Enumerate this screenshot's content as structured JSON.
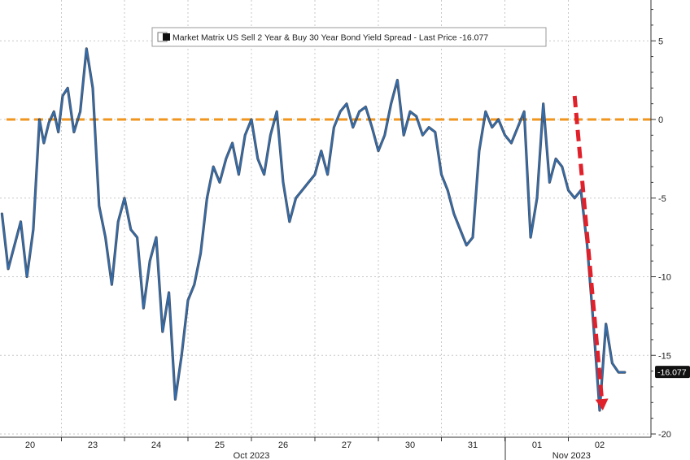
{
  "chart_data": {
    "type": "line",
    "title": "",
    "xlabel": "",
    "ylabel": "",
    "legend": {
      "text": "Market Matrix US Sell 2 Year & Buy 30 Year Bond Yield Spread - Last Price -16.077",
      "placement": "top-center"
    },
    "ylim": [
      -20,
      7
    ],
    "yticks": [
      5,
      0,
      -5,
      -10,
      -15,
      -20
    ],
    "ytick_labels": [
      "5",
      "0",
      "-5",
      "-10",
      "-15",
      "-20"
    ],
    "grid": true,
    "reference_line": {
      "y": 0,
      "color": "#f0961e",
      "style": "dashed"
    },
    "x_day_labels": [
      "20",
      "23",
      "24",
      "25",
      "26",
      "27",
      "30",
      "31",
      "01",
      "02"
    ],
    "x_month_labels": [
      {
        "label": "Oct 2023",
        "day_index": 3.5
      },
      {
        "label": "Nov 2023",
        "day_index": 8.55
      }
    ],
    "last_price": {
      "label": "-16.077",
      "value": -16.077,
      "color": "#111111"
    },
    "annotation": {
      "type": "arrow",
      "color": "#e0202a",
      "style": "dashed",
      "from": [
        8.6,
        1.5
      ],
      "to": [
        9.05,
        -18.5
      ]
    },
    "series": [
      {
        "color": "#2f6fb5",
        "x": [
          -0.45,
          -0.35,
          -0.25,
          -0.15,
          -0.05,
          0.05,
          0.15,
          0.22,
          0.3,
          0.38,
          0.45,
          0.52,
          0.6,
          0.7,
          0.8,
          0.9,
          1.0,
          1.1,
          1.2,
          1.3,
          1.4,
          1.5,
          1.6,
          1.7,
          1.8,
          1.9,
          2.0,
          2.1,
          2.2,
          2.3,
          2.4,
          2.5,
          2.6,
          2.7,
          2.8,
          2.9,
          3.0,
          3.1,
          3.2,
          3.3,
          3.4,
          3.5,
          3.6,
          3.7,
          3.8,
          3.9,
          4.0,
          4.1,
          4.2,
          4.3,
          4.4,
          4.5,
          4.6,
          4.7,
          4.8,
          4.9,
          5.0,
          5.1,
          5.2,
          5.3,
          5.4,
          5.5,
          5.6,
          5.7,
          5.8,
          5.9,
          6.0,
          6.1,
          6.2,
          6.3,
          6.4,
          6.5,
          6.6,
          6.7,
          6.8,
          6.9,
          7.0,
          7.1,
          7.2,
          7.3,
          7.4,
          7.5,
          7.6,
          7.7,
          7.8,
          7.9,
          8.0,
          8.1,
          8.2,
          8.3,
          8.4,
          8.5,
          8.6,
          8.7,
          8.8,
          8.9,
          9.0,
          9.1,
          9.2,
          9.3,
          9.4
        ],
        "values": [
          -6.0,
          -9.5,
          -8.0,
          -6.5,
          -10.0,
          -7.0,
          0.0,
          -1.5,
          -0.2,
          0.5,
          -0.8,
          1.5,
          2.0,
          -0.8,
          0.5,
          4.5,
          2.0,
          -5.5,
          -7.5,
          -10.5,
          -6.5,
          -5.0,
          -7.0,
          -7.5,
          -12.0,
          -9.0,
          -7.5,
          -13.5,
          -11.0,
          -17.8,
          -15.0,
          -11.5,
          -10.5,
          -8.5,
          -5.0,
          -3.0,
          -4.0,
          -2.5,
          -1.5,
          -3.5,
          -1.0,
          0.0,
          -2.5,
          -3.5,
          -1.0,
          0.5,
          -4.0,
          -6.5,
          -5.0,
          -4.5,
          -4.0,
          -3.5,
          -2.0,
          -3.5,
          -0.5,
          0.5,
          1.0,
          -0.5,
          0.5,
          0.8,
          -0.5,
          -2.0,
          -1.0,
          1.0,
          2.5,
          -1.0,
          0.5,
          0.2,
          -1.0,
          -0.5,
          -0.8,
          -3.5,
          -4.5,
          -6.0,
          -7.0,
          -8.0,
          -7.5,
          -2.0,
          0.5,
          -0.5,
          0.0,
          -1.0,
          -1.5,
          -0.5,
          0.5,
          -7.5,
          -5.0,
          1.0,
          -4.0,
          -2.5,
          -3.0,
          -4.5,
          -5.0,
          -4.5,
          -8.0,
          -13.0,
          -18.5,
          -13.0,
          -15.5,
          -16.077,
          -16.077
        ]
      }
    ]
  }
}
